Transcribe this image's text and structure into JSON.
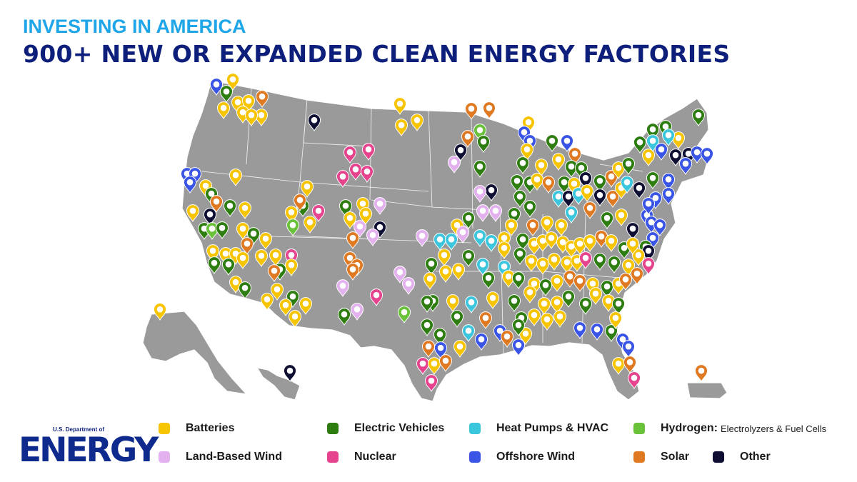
{
  "header": {
    "kicker": "INVESTING IN AMERICA",
    "headline": "900+ NEW OR EXPANDED CLEAN ENERGY FACTORIES"
  },
  "logo": {
    "department": "U.S. Department of",
    "word": "ENERGY"
  },
  "colors": {
    "batteries": "#f7c400",
    "electric_vehicles": "#2e7d11",
    "heat_pumps": "#3cc6dd",
    "hydrogen": "#6ac13a",
    "land_wind": "#e3b1ee",
    "nuclear": "#e5438e",
    "offshore_wind": "#3a55e6",
    "solar": "#e07a22",
    "other": "#0e0f33",
    "land": "#9a9a9a",
    "header_kicker": "#1fa6e8",
    "header_title": "#0d1f7a"
  },
  "legend": [
    {
      "key": "batteries",
      "label": "Batteries"
    },
    {
      "key": "electric_vehicles",
      "label": "Electric Vehicles"
    },
    {
      "key": "heat_pumps",
      "label": "Heat Pumps & HVAC"
    },
    {
      "key": "hydrogen",
      "label": "Hydrogen:",
      "sublabel": "Electrolyzers & Fuel Cells"
    },
    {
      "key": "land_wind",
      "label": "Land-Based Wind"
    },
    {
      "key": "nuclear",
      "label": "Nuclear"
    },
    {
      "key": "offshore_wind",
      "label": "Offshore Wind"
    },
    {
      "key": "solar",
      "label": "Solar"
    },
    {
      "key": "other",
      "label": "Other"
    }
  ]
}
